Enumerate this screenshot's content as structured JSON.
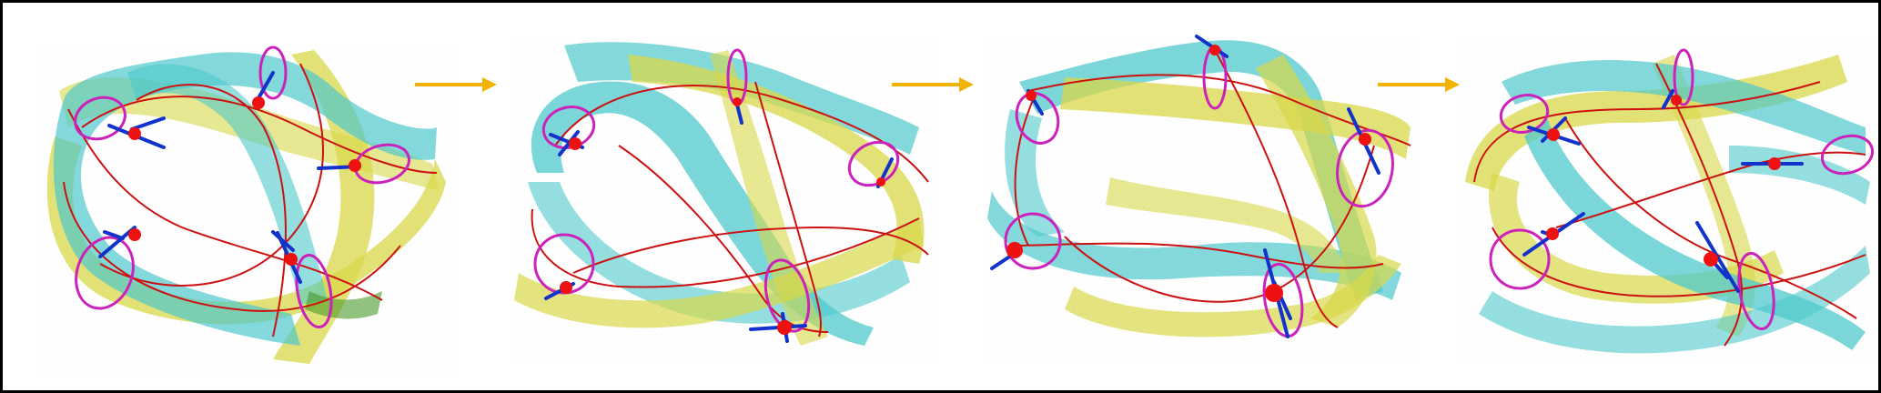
{
  "figure": {
    "panel_count": 4,
    "arrow_count": 3,
    "colors": {
      "border": "#000000",
      "background": "#ffffff",
      "band_cyan": "#4fc9cc",
      "band_yellow": "#d9d84a",
      "band_green": "#4a9a2a",
      "curve_red": "#cc1111",
      "point_red": "#ee1111",
      "ring_magenta": "#cc22bb",
      "axis_blue": "#1133cc",
      "arrow_gold": "#f2b300"
    },
    "panels": [
      {
        "id": "panel-1",
        "marked_points": 5
      },
      {
        "id": "panel-2",
        "marked_points": 5
      },
      {
        "id": "panel-3",
        "marked_points": 5
      },
      {
        "id": "panel-4",
        "marked_points": 5
      }
    ]
  }
}
